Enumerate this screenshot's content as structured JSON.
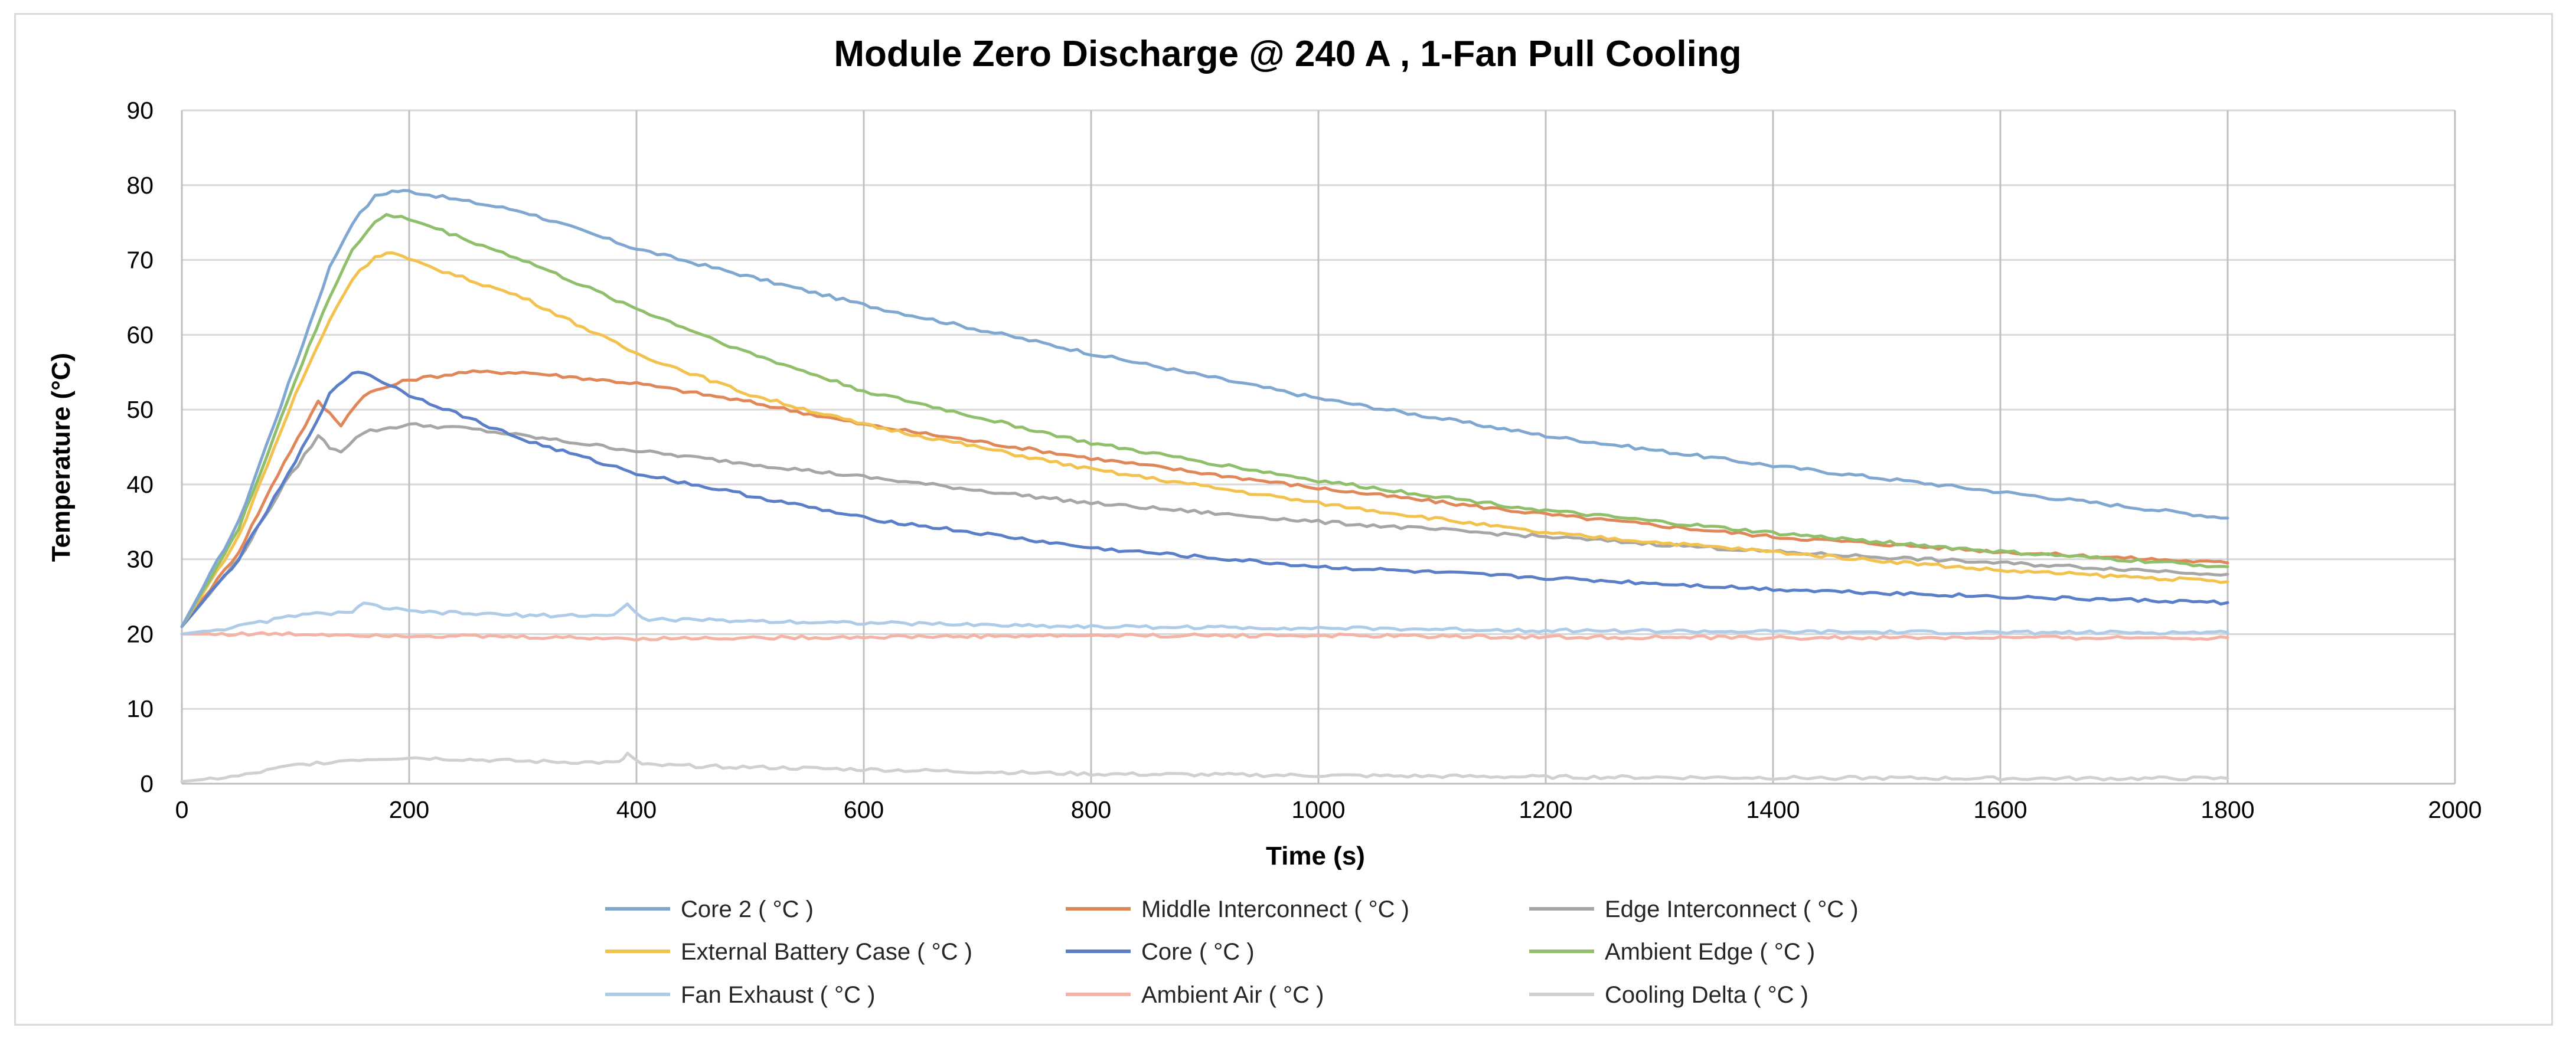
{
  "chart_data": {
    "type": "line",
    "title": "Module Zero Discharge @ 240 A , 1-Fan Pull Cooling",
    "xlabel": "Time (s)",
    "ylabel": "Temperature (°C)",
    "xlim": [
      0,
      2000
    ],
    "ylim": [
      0,
      90
    ],
    "xticks": [
      0,
      200,
      400,
      600,
      800,
      1000,
      1200,
      1400,
      1600,
      1800,
      2000
    ],
    "yticks": [
      0,
      10,
      20,
      30,
      40,
      50,
      60,
      70,
      80,
      90
    ],
    "grid": true,
    "legend_position": "bottom",
    "series": [
      {
        "name": "Core 2 ( °C )",
        "color": "#7fa7d1",
        "points": [
          [
            0,
            21
          ],
          [
            50,
            35
          ],
          [
            100,
            56
          ],
          [
            130,
            69
          ],
          [
            150,
            75
          ],
          [
            170,
            78.5
          ],
          [
            185,
            79.2
          ],
          [
            200,
            79.2
          ],
          [
            300,
            76.5
          ],
          [
            400,
            71.5
          ],
          [
            600,
            64
          ],
          [
            800,
            57.5
          ],
          [
            1000,
            51.5
          ],
          [
            1200,
            46.5
          ],
          [
            1400,
            42.5
          ],
          [
            1600,
            39
          ],
          [
            1800,
            35.5
          ]
        ]
      },
      {
        "name": "Middle Interconnect ( °C )",
        "color": "#e0875a",
        "points": [
          [
            0,
            21
          ],
          [
            50,
            31
          ],
          [
            90,
            43
          ],
          [
            120,
            51
          ],
          [
            130,
            49.5
          ],
          [
            140,
            48
          ],
          [
            160,
            52
          ],
          [
            200,
            54
          ],
          [
            250,
            55
          ],
          [
            300,
            55
          ],
          [
            400,
            53.5
          ],
          [
            500,
            51
          ],
          [
            600,
            48
          ],
          [
            800,
            43.5
          ],
          [
            1000,
            39.5
          ],
          [
            1200,
            36
          ],
          [
            1400,
            33
          ],
          [
            1600,
            31
          ],
          [
            1800,
            29.5
          ]
        ]
      },
      {
        "name": "Edge Interconnect ( °C )",
        "color": "#a6a6a6",
        "points": [
          [
            0,
            21
          ],
          [
            50,
            30
          ],
          [
            90,
            40
          ],
          [
            120,
            46.5
          ],
          [
            130,
            45
          ],
          [
            140,
            44.5
          ],
          [
            160,
            47
          ],
          [
            200,
            48
          ],
          [
            250,
            47.5
          ],
          [
            300,
            46.5
          ],
          [
            400,
            44.5
          ],
          [
            600,
            41
          ],
          [
            800,
            37.5
          ],
          [
            1000,
            35
          ],
          [
            1200,
            33
          ],
          [
            1400,
            31
          ],
          [
            1600,
            29.5
          ],
          [
            1800,
            28
          ]
        ]
      },
      {
        "name": "External Battery Case ( °C )",
        "color": "#f2c14e",
        "points": [
          [
            0,
            21
          ],
          [
            50,
            33
          ],
          [
            100,
            52
          ],
          [
            130,
            62
          ],
          [
            150,
            67.5
          ],
          [
            170,
            70.5
          ],
          [
            185,
            71
          ],
          [
            200,
            70
          ],
          [
            300,
            65
          ],
          [
            400,
            57.5
          ],
          [
            500,
            52
          ],
          [
            600,
            48
          ],
          [
            800,
            42
          ],
          [
            1000,
            37.5
          ],
          [
            1200,
            33.5
          ],
          [
            1400,
            31
          ],
          [
            1600,
            28.5
          ],
          [
            1800,
            27
          ]
        ]
      },
      {
        "name": "Core ( °C )",
        "color": "#5b7ec9",
        "points": [
          [
            0,
            21
          ],
          [
            50,
            30
          ],
          [
            100,
            43
          ],
          [
            130,
            52
          ],
          [
            150,
            55
          ],
          [
            160,
            55
          ],
          [
            200,
            52
          ],
          [
            300,
            46
          ],
          [
            400,
            41.5
          ],
          [
            600,
            35.5
          ],
          [
            800,
            31.5
          ],
          [
            1000,
            29
          ],
          [
            1200,
            27.5
          ],
          [
            1400,
            26
          ],
          [
            1600,
            25
          ],
          [
            1800,
            24.2
          ]
        ]
      },
      {
        "name": "Ambient Edge ( °C )",
        "color": "#8fbf6a",
        "points": [
          [
            0,
            21
          ],
          [
            50,
            34
          ],
          [
            100,
            54
          ],
          [
            130,
            65
          ],
          [
            150,
            71.5
          ],
          [
            170,
            75
          ],
          [
            180,
            76
          ],
          [
            200,
            75.5
          ],
          [
            300,
            70
          ],
          [
            400,
            63.5
          ],
          [
            500,
            57.5
          ],
          [
            600,
            52.5
          ],
          [
            800,
            45.5
          ],
          [
            1000,
            40.5
          ],
          [
            1200,
            36.5
          ],
          [
            1400,
            33.5
          ],
          [
            1600,
            31
          ],
          [
            1800,
            29
          ]
        ]
      },
      {
        "name": "Fan Exhaust ( °C )",
        "color": "#aecbe8",
        "points": [
          [
            0,
            20
          ],
          [
            50,
            21
          ],
          [
            100,
            22.5
          ],
          [
            150,
            23
          ],
          [
            160,
            24
          ],
          [
            200,
            23
          ],
          [
            300,
            22.5
          ],
          [
            380,
            22.5
          ],
          [
            392,
            24
          ],
          [
            405,
            22
          ],
          [
            600,
            21.5
          ],
          [
            800,
            21
          ],
          [
            1000,
            20.8
          ],
          [
            1200,
            20.5
          ],
          [
            1400,
            20.3
          ],
          [
            1600,
            20.2
          ],
          [
            1800,
            20.2
          ]
        ]
      },
      {
        "name": "Ambient Air ( °C )",
        "color": "#f4b3a6",
        "points": [
          [
            0,
            20
          ],
          [
            100,
            20
          ],
          [
            200,
            19.8
          ],
          [
            300,
            19.6
          ],
          [
            400,
            19.4
          ],
          [
            600,
            19.6
          ],
          [
            800,
            19.8
          ],
          [
            1000,
            19.8
          ],
          [
            1200,
            19.6
          ],
          [
            1400,
            19.5
          ],
          [
            1600,
            19.5
          ],
          [
            1800,
            19.5
          ]
        ]
      },
      {
        "name": "Cooling Delta ( °C )",
        "color": "#d0d0d0",
        "points": [
          [
            0,
            0.3
          ],
          [
            50,
            1
          ],
          [
            100,
            2.5
          ],
          [
            150,
            3.2
          ],
          [
            200,
            3.5
          ],
          [
            300,
            3
          ],
          [
            385,
            2.8
          ],
          [
            392,
            4
          ],
          [
            405,
            2.5
          ],
          [
            600,
            1.9
          ],
          [
            800,
            1.3
          ],
          [
            1000,
            1.1
          ],
          [
            1200,
            0.9
          ],
          [
            1400,
            0.8
          ],
          [
            1600,
            0.7
          ],
          [
            1800,
            0.7
          ]
        ]
      }
    ]
  }
}
